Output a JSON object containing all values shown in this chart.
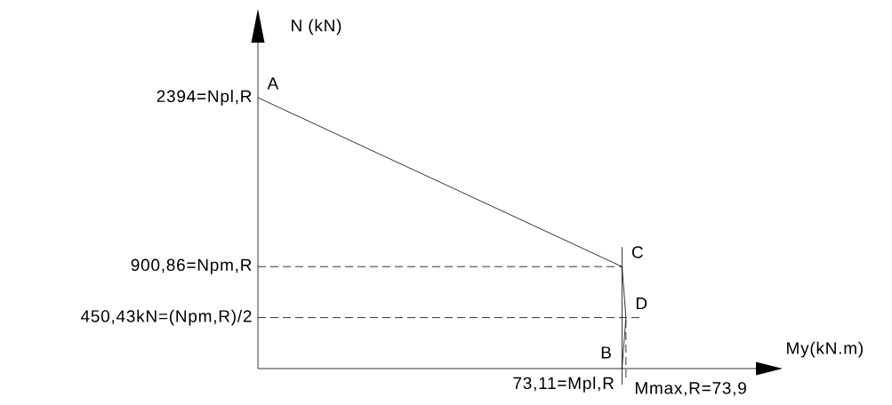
{
  "chart_data": {
    "type": "line",
    "xlabel": "My(kN.m)",
    "ylabel": "N (kN)",
    "line_style": "solid",
    "tick_labels": "y",
    "x": [
      0,
      73.11,
      73.9,
      73.11
    ],
    "series": [
      {
        "color": "#000000",
        "values": [
          2394,
          900.86,
          450.43,
          0
        ]
      }
    ],
    "xlim": [
      0,
      100
    ],
    "ylim": [
      0,
      2880
    ],
    "yticks": [
      {
        "value": 2394,
        "label": "2394=Npl,R"
      },
      {
        "value": 900.86,
        "label": "900,86=Npm,R"
      },
      {
        "value": 450.43,
        "label": "450,43kN=(Npm,R)/2"
      }
    ],
    "ref_lines": [
      {
        "axis": "y",
        "value": 900.86,
        "color": "#000000",
        "line_style": "dashed"
      },
      {
        "axis": "y",
        "value": 450.43,
        "color": "#000000",
        "line_style": "dashed"
      },
      {
        "axis": "x",
        "value": 73.11,
        "label": "73,11=Mpl,R",
        "color": "#000000",
        "line_style": "solid"
      },
      {
        "axis": "x",
        "value": 73.9,
        "label": "Mmax,R=73,9",
        "color": "#000000",
        "line_style": "dashed"
      }
    ],
    "annotations": [
      {
        "text": "A",
        "x": 0,
        "y": 2394
      },
      {
        "text": "C",
        "x": 73.11,
        "y": 900.86
      },
      {
        "text": "D",
        "x": 73.9,
        "y": 450.43
      },
      {
        "text": "B",
        "x": 73.11,
        "y": 0
      }
    ]
  }
}
